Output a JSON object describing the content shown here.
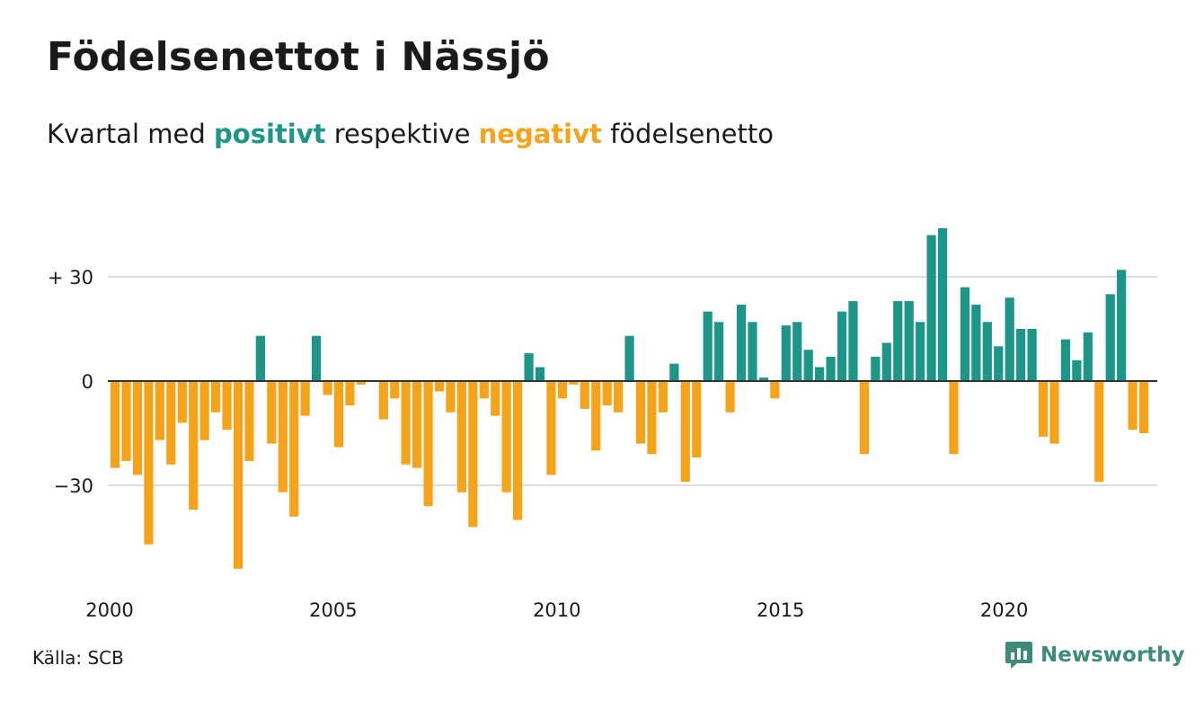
{
  "title": "Födelsenettot i Nässjö",
  "subtitle": {
    "prefix": "Kvartal med",
    "positive_word": "positivt",
    "middle": "respektive",
    "negative_word": "negativt",
    "suffix": "födelsenetto"
  },
  "colors": {
    "positive": "#1b9688",
    "negative": "#f5a31a",
    "grid": "#dddddd",
    "baseline": "#333333"
  },
  "source": "Källa: SCB",
  "logo": {
    "name": "Newsworthy",
    "icon": "newsworthy-logo-icon"
  },
  "chart_data": {
    "type": "bar",
    "title": "Födelsenettot i Nässjö",
    "xlabel": "",
    "ylabel": "",
    "ylim": [
      -55,
      45
    ],
    "y_ticks": [
      {
        "value": 30,
        "label": "+ 30"
      },
      {
        "value": 0,
        "label": "0"
      },
      {
        "value": -30,
        "label": "−30"
      }
    ],
    "x_ticks": [
      2000,
      2005,
      2010,
      2015,
      2020
    ],
    "x_start": 2000.0,
    "period": "quarter",
    "grid": true,
    "legend": "none",
    "values": [
      -25,
      -23,
      -27,
      -47,
      -17,
      -24,
      -12,
      -37,
      -17,
      -9,
      -14,
      -54,
      -23,
      13,
      -18,
      -32,
      -39,
      -10,
      13,
      -4,
      -19,
      -7,
      -1,
      0,
      -11,
      -5,
      -24,
      -25,
      -36,
      -3,
      -9,
      -32,
      -42,
      -5,
      -10,
      -32,
      -40,
      8,
      4,
      -27,
      -5,
      -1,
      -8,
      -20,
      -7,
      -9,
      13,
      -18,
      -21,
      -9,
      5,
      -29,
      -22,
      20,
      17,
      -9,
      22,
      17,
      1,
      -5,
      16,
      17,
      9,
      4,
      7,
      20,
      23,
      -21,
      7,
      11,
      23,
      23,
      17,
      42,
      44,
      -21,
      27,
      22,
      17,
      10,
      24,
      15,
      15,
      -16,
      -18,
      12,
      6,
      14,
      -29,
      25,
      32,
      -14,
      -15
    ]
  }
}
